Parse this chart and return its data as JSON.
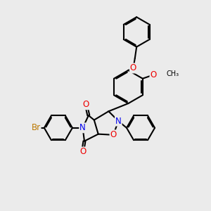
{
  "bg_color": "#ebebeb",
  "bond_color": "#000000",
  "bond_width": 1.5,
  "atom_colors": {
    "N": "#0000ee",
    "O": "#ee0000",
    "Br": "#bb7700",
    "C": "#000000"
  },
  "font_size_atom": 8.5,
  "font_size_small": 7.5,
  "xlim": [
    0,
    10
  ],
  "ylim": [
    0,
    10
  ]
}
